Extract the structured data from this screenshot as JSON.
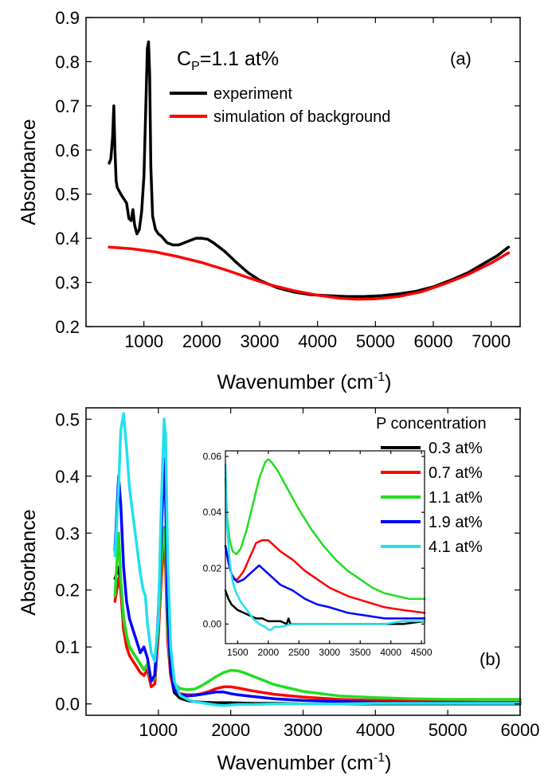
{
  "chart_data": [
    {
      "type": "line",
      "panel_label": "(a)",
      "annotation": {
        "main": "C",
        "sub": "P",
        "rest": "=1.1 at%"
      },
      "xlabel": {
        "main": "Wavenumber (cm",
        "sup": "-1",
        "tail": ")"
      },
      "ylabel": "Absorbance",
      "xlim": [
        0,
        7500
      ],
      "ylim": [
        0.2,
        0.9
      ],
      "xticks": [
        1000,
        2000,
        3000,
        4000,
        5000,
        6000,
        7000
      ],
      "yticks": [
        0.2,
        0.3,
        0.4,
        0.5,
        0.6,
        0.7,
        0.8,
        0.9
      ],
      "ytick_labels": [
        "0.2",
        "0.3",
        "0.4",
        "0.5",
        "0.6",
        "0.7",
        "0.8",
        "0.9"
      ],
      "series": [
        {
          "name": "experiment",
          "color": "#000000",
          "x": [
            400,
            430,
            460,
            480,
            500,
            520,
            540,
            560,
            600,
            650,
            700,
            740,
            780,
            810,
            840,
            880,
            920,
            960,
            1000,
            1030,
            1060,
            1080,
            1100,
            1120,
            1150,
            1200,
            1250,
            1300,
            1400,
            1500,
            1600,
            1700,
            1800,
            1900,
            2000,
            2100,
            2200,
            2400,
            2600,
            2800,
            3000,
            3300,
            3600,
            3900,
            4200,
            4500,
            4800,
            5100,
            5400,
            5700,
            6000,
            6300,
            6600,
            6900,
            7100,
            7300
          ],
          "y": [
            0.57,
            0.58,
            0.63,
            0.7,
            0.6,
            0.53,
            0.515,
            0.51,
            0.5,
            0.49,
            0.48,
            0.445,
            0.44,
            0.465,
            0.43,
            0.41,
            0.42,
            0.46,
            0.54,
            0.68,
            0.83,
            0.845,
            0.77,
            0.56,
            0.45,
            0.42,
            0.41,
            0.405,
            0.39,
            0.385,
            0.385,
            0.39,
            0.395,
            0.4,
            0.4,
            0.398,
            0.39,
            0.37,
            0.345,
            0.322,
            0.305,
            0.288,
            0.278,
            0.272,
            0.27,
            0.268,
            0.268,
            0.27,
            0.274,
            0.28,
            0.29,
            0.305,
            0.322,
            0.345,
            0.36,
            0.38
          ]
        },
        {
          "name": "simulation of background",
          "color": "#ff0000",
          "x": [
            400,
            800,
            1200,
            1600,
            2000,
            2400,
            2800,
            3200,
            3600,
            4000,
            4400,
            4700,
            5000,
            5400,
            5800,
            6200,
            6600,
            7000,
            7300
          ],
          "y": [
            0.38,
            0.376,
            0.369,
            0.358,
            0.345,
            0.329,
            0.311,
            0.294,
            0.281,
            0.271,
            0.264,
            0.262,
            0.263,
            0.268,
            0.279,
            0.297,
            0.318,
            0.344,
            0.367
          ]
        }
      ]
    },
    {
      "type": "line",
      "panel_label": "(b)",
      "legend_title": "P concentration",
      "xlabel": {
        "main": "Wavenumber (cm",
        "sup": "-1",
        "tail": ")"
      },
      "ylabel": "Absorbance",
      "xlim": [
        0,
        6000
      ],
      "ylim": [
        -0.02,
        0.52
      ],
      "xticks": [
        1000,
        2000,
        3000,
        4000,
        5000,
        6000
      ],
      "yticks": [
        0.0,
        0.1,
        0.2,
        0.3,
        0.4,
        0.5
      ],
      "ytick_labels": [
        "0.0",
        "0.1",
        "0.2",
        "0.3",
        "0.4",
        "0.5"
      ],
      "series": [
        {
          "name": "0.3 at%",
          "color": "#000000",
          "x": [
            400,
            450,
            480,
            520,
            560,
            600,
            650,
            700,
            750,
            800,
            850,
            900,
            950,
            1000,
            1040,
            1080,
            1100,
            1130,
            1170,
            1220,
            1300,
            1400,
            1500,
            1600,
            1800,
            2000,
            2300,
            2600,
            3000,
            3500,
            4000,
            4500,
            5000,
            5500,
            6000
          ],
          "y": [
            0.22,
            0.24,
            0.21,
            0.15,
            0.12,
            0.1,
            0.09,
            0.08,
            0.07,
            0.06,
            0.07,
            0.04,
            0.05,
            0.14,
            0.24,
            0.3,
            0.25,
            0.12,
            0.05,
            0.02,
            0.01,
            0.006,
            0.004,
            0.003,
            0.002,
            0.002,
            0.001,
            0.001,
            0.0,
            0.0,
            0.0,
            0.0,
            0.0,
            0.0,
            0.0
          ]
        },
        {
          "name": "0.7 at%",
          "color": "#ff0000",
          "x": [
            400,
            450,
            480,
            520,
            560,
            600,
            650,
            700,
            750,
            800,
            850,
            900,
            950,
            1000,
            1040,
            1080,
            1100,
            1130,
            1170,
            1220,
            1300,
            1400,
            1500,
            1600,
            1700,
            1800,
            1900,
            2000,
            2100,
            2300,
            2600,
            3000,
            3500,
            4000,
            4500,
            5000,
            5500,
            6000
          ],
          "y": [
            0.18,
            0.22,
            0.2,
            0.13,
            0.1,
            0.085,
            0.075,
            0.065,
            0.055,
            0.05,
            0.06,
            0.03,
            0.035,
            0.12,
            0.22,
            0.29,
            0.24,
            0.11,
            0.05,
            0.025,
            0.018,
            0.016,
            0.016,
            0.018,
            0.022,
            0.027,
            0.03,
            0.03,
            0.028,
            0.023,
            0.017,
            0.012,
            0.008,
            0.006,
            0.005,
            0.004,
            0.003,
            0.003
          ]
        },
        {
          "name": "1.1 at%",
          "color": "#22dd22",
          "x": [
            400,
            450,
            480,
            520,
            560,
            600,
            650,
            700,
            750,
            800,
            850,
            900,
            950,
            1000,
            1040,
            1080,
            1100,
            1130,
            1170,
            1220,
            1300,
            1400,
            1500,
            1600,
            1700,
            1800,
            1900,
            2000,
            2100,
            2200,
            2400,
            2600,
            3000,
            3500,
            4000,
            4500,
            5000,
            5500,
            6000
          ],
          "y": [
            0.19,
            0.3,
            0.22,
            0.15,
            0.12,
            0.1,
            0.09,
            0.08,
            0.07,
            0.06,
            0.07,
            0.04,
            0.045,
            0.14,
            0.25,
            0.31,
            0.27,
            0.13,
            0.06,
            0.035,
            0.027,
            0.025,
            0.026,
            0.032,
            0.04,
            0.048,
            0.055,
            0.059,
            0.058,
            0.054,
            0.044,
            0.034,
            0.022,
            0.014,
            0.011,
            0.009,
            0.008,
            0.008,
            0.008
          ]
        },
        {
          "name": "1.9 at%",
          "color": "#0000ff",
          "x": [
            400,
            450,
            480,
            520,
            560,
            600,
            650,
            700,
            750,
            800,
            850,
            900,
            950,
            1000,
            1040,
            1080,
            1100,
            1130,
            1170,
            1220,
            1300,
            1400,
            1500,
            1600,
            1700,
            1800,
            1900,
            2000,
            2100,
            2300,
            2600,
            3000,
            3500,
            4000,
            4500,
            5000,
            5500,
            6000
          ],
          "y": [
            0.27,
            0.4,
            0.35,
            0.24,
            0.18,
            0.15,
            0.13,
            0.11,
            0.09,
            0.1,
            0.08,
            0.04,
            0.05,
            0.16,
            0.3,
            0.43,
            0.36,
            0.16,
            0.06,
            0.025,
            0.016,
            0.014,
            0.015,
            0.017,
            0.019,
            0.021,
            0.021,
            0.018,
            0.016,
            0.013,
            0.009,
            0.006,
            0.004,
            0.003,
            0.002,
            0.002,
            0.001,
            0.001
          ]
        },
        {
          "name": "4.1 at%",
          "color": "#22e0ee",
          "x": [
            400,
            450,
            480,
            520,
            560,
            600,
            650,
            700,
            750,
            790,
            820,
            850,
            900,
            950,
            1000,
            1040,
            1080,
            1100,
            1130,
            1170,
            1220,
            1300,
            1400,
            1500,
            1600,
            1700,
            1800,
            1900,
            2000,
            2100,
            2300,
            2600,
            3000,
            3500,
            4000,
            4500,
            5000,
            5500,
            6000
          ],
          "y": [
            0.26,
            0.38,
            0.48,
            0.51,
            0.45,
            0.38,
            0.33,
            0.28,
            0.23,
            0.2,
            0.19,
            0.14,
            0.09,
            0.075,
            0.15,
            0.35,
            0.5,
            0.47,
            0.25,
            0.1,
            0.04,
            0.015,
            0.008,
            0.004,
            0.002,
            0.0,
            -0.002,
            -0.003,
            -0.002,
            -0.001,
            -0.001,
            0.0,
            0.0,
            0.0,
            0.001,
            0.001,
            0.001,
            0.001,
            0.001
          ]
        }
      ]
    },
    {
      "type": "line",
      "role": "inset",
      "xlim": [
        1300,
        4550
      ],
      "ylim": [
        -0.007,
        0.062
      ],
      "xticks": [
        1500,
        2000,
        2500,
        3000,
        3500,
        4000,
        4500
      ],
      "yticks": [
        0.0,
        0.02,
        0.04,
        0.06
      ],
      "ytick_labels": [
        "0.00",
        "0.02",
        "0.04",
        "0.06"
      ],
      "series": [
        {
          "name": "0.3 at%",
          "color": "#000000",
          "x": [
            1300,
            1350,
            1400,
            1450,
            1500,
            1600,
            1700,
            1800,
            1900,
            2000,
            2100,
            2200,
            2300,
            2330,
            2360,
            2400,
            2500,
            2700,
            3000,
            3300,
            3600,
            3900,
            4200,
            4550
          ],
          "y": [
            0.012,
            0.009,
            0.007,
            0.006,
            0.005,
            0.004,
            0.003,
            0.002,
            0.002,
            0.001,
            0.001,
            0.001,
            0.0,
            0.002,
            0.0,
            0.0,
            0.0,
            0.0,
            0.0,
            0.0,
            0.0,
            0.0,
            0.0,
            0.001
          ]
        },
        {
          "name": "0.7 at%",
          "color": "#ff0000",
          "x": [
            1300,
            1350,
            1400,
            1450,
            1500,
            1600,
            1700,
            1800,
            1900,
            2000,
            2100,
            2200,
            2400,
            2600,
            2800,
            3000,
            3300,
            3600,
            3900,
            4200,
            4550
          ],
          "y": [
            0.028,
            0.022,
            0.018,
            0.016,
            0.016,
            0.019,
            0.024,
            0.029,
            0.03,
            0.03,
            0.028,
            0.026,
            0.023,
            0.019,
            0.016,
            0.013,
            0.01,
            0.008,
            0.006,
            0.005,
            0.004
          ]
        },
        {
          "name": "1.1 at%",
          "color": "#22dd22",
          "x": [
            1300,
            1330,
            1370,
            1420,
            1480,
            1550,
            1650,
            1750,
            1850,
            1950,
            2000,
            2050,
            2150,
            2300,
            2500,
            2700,
            2900,
            3100,
            3300,
            3500,
            3700,
            3900,
            4100,
            4300,
            4550
          ],
          "y": [
            0.052,
            0.038,
            0.03,
            0.026,
            0.025,
            0.027,
            0.034,
            0.043,
            0.052,
            0.058,
            0.059,
            0.058,
            0.055,
            0.049,
            0.041,
            0.034,
            0.028,
            0.023,
            0.019,
            0.016,
            0.013,
            0.011,
            0.01,
            0.009,
            0.009
          ]
        },
        {
          "name": "1.9 at%",
          "color": "#0000ff",
          "x": [
            1300,
            1350,
            1400,
            1450,
            1500,
            1600,
            1700,
            1800,
            1850,
            1900,
            2000,
            2100,
            2200,
            2400,
            2600,
            2800,
            3000,
            3300,
            3600,
            3900,
            4200,
            4550
          ],
          "y": [
            0.028,
            0.022,
            0.018,
            0.016,
            0.015,
            0.016,
            0.018,
            0.02,
            0.021,
            0.02,
            0.018,
            0.016,
            0.014,
            0.012,
            0.009,
            0.007,
            0.006,
            0.004,
            0.003,
            0.002,
            0.002,
            0.002
          ]
        },
        {
          "name": "4.1 at%",
          "color": "#22e0ee",
          "x": [
            1300,
            1330,
            1370,
            1420,
            1480,
            1550,
            1650,
            1750,
            1850,
            1950,
            2000,
            2050,
            2100,
            2200,
            2400,
            2600,
            2800,
            3000,
            3300,
            3600,
            3900,
            4200,
            4550
          ],
          "y": [
            0.057,
            0.035,
            0.022,
            0.015,
            0.011,
            0.008,
            0.005,
            0.002,
            0.0,
            -0.001,
            -0.002,
            -0.002,
            -0.001,
            -0.001,
            0.0,
            0.0,
            0.0,
            0.0,
            0.0,
            0.0,
            0.0,
            0.001,
            0.001
          ]
        }
      ]
    }
  ]
}
